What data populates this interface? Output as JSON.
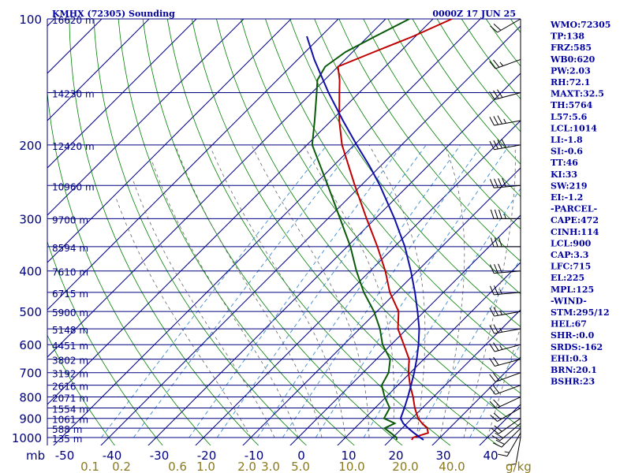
{
  "header": {
    "station": "KMHX (72305) Sounding",
    "time": "0000Z 17 JUN 25"
  },
  "chart_data": {
    "type": "line",
    "title": "KMHX (72305) Sounding",
    "subtitle": "0000Z 17 JUN 25",
    "pressure_unit": "mb",
    "mixing_ratio_unit": "g/kg",
    "pressure_ticks": [
      100,
      200,
      300,
      400,
      500,
      600,
      700,
      800,
      900,
      1000
    ],
    "height_labels": [
      {
        "p": 100,
        "label": "16620 m"
      },
      {
        "p": 150,
        "label": "14230 m"
      },
      {
        "p": 200,
        "label": "12420 m"
      },
      {
        "p": 250,
        "label": "10960 m"
      },
      {
        "p": 300,
        "label": "9700 m"
      },
      {
        "p": 350,
        "label": "8594 m"
      },
      {
        "p": 400,
        "label": "7610 m"
      },
      {
        "p": 450,
        "label": "6715 m"
      },
      {
        "p": 500,
        "label": "5900 m"
      },
      {
        "p": 550,
        "label": "5148 m"
      },
      {
        "p": 600,
        "label": "4451 m"
      },
      {
        "p": 650,
        "label": "3802 m"
      },
      {
        "p": 700,
        "label": "3192 m"
      },
      {
        "p": 750,
        "label": "2616 m"
      },
      {
        "p": 800,
        "label": "2071 m"
      },
      {
        "p": 850,
        "label": "1554 m"
      },
      {
        "p": 900,
        "label": "1061 m"
      },
      {
        "p": 950,
        "label": "588 m"
      },
      {
        "p": 1000,
        "label": "135 m"
      }
    ],
    "temperature_ticks": [
      -50,
      -40,
      -30,
      -20,
      -10,
      0,
      10,
      20,
      30,
      40
    ],
    "mixing_ratio_ticks": [
      "0.1",
      "0.2",
      "0.6",
      "1.0",
      "2.0",
      "3.0",
      "5.0",
      "10.0",
      "20.0",
      "40.0"
    ],
    "series": [
      {
        "role": "temperature",
        "color": "#c00000",
        "points": [
          [
            1013,
            24.5
          ],
          [
            1000,
            24.3
          ],
          [
            975,
            26.5
          ],
          [
            950,
            25.3
          ],
          [
            925,
            23.2
          ],
          [
            900,
            21.3
          ],
          [
            850,
            18.4
          ],
          [
            800,
            15.7
          ],
          [
            750,
            12.6
          ],
          [
            700,
            9.6
          ],
          [
            650,
            6.9
          ],
          [
            600,
            2.7
          ],
          [
            550,
            -1.9
          ],
          [
            500,
            -5.4
          ],
          [
            450,
            -11.3
          ],
          [
            400,
            -16.8
          ],
          [
            350,
            -23.6
          ],
          [
            300,
            -31.8
          ],
          [
            250,
            -41.3
          ],
          [
            200,
            -52.6
          ],
          [
            175,
            -58.3
          ],
          [
            150,
            -64.2
          ],
          [
            140,
            -66.8
          ],
          [
            130,
            -70.0
          ],
          [
            120,
            -65.5
          ],
          [
            110,
            -60.5
          ],
          [
            100,
            -56.0
          ]
        ]
      },
      {
        "role": "dewpoint",
        "color": "#0a5a0a",
        "points": [
          [
            1013,
            21.3
          ],
          [
            1000,
            20.8
          ],
          [
            975,
            18.6
          ],
          [
            950,
            16.3
          ],
          [
            925,
            17.4
          ],
          [
            900,
            14.1
          ],
          [
            850,
            13.1
          ],
          [
            800,
            9.7
          ],
          [
            750,
            6.6
          ],
          [
            700,
            5.4
          ],
          [
            650,
            2.9
          ],
          [
            600,
            -1.8
          ],
          [
            550,
            -5.7
          ],
          [
            500,
            -10.6
          ],
          [
            450,
            -16.8
          ],
          [
            400,
            -22.9
          ],
          [
            350,
            -29.3
          ],
          [
            300,
            -37.4
          ],
          [
            250,
            -47.0
          ],
          [
            200,
            -58.9
          ],
          [
            175,
            -63.5
          ],
          [
            150,
            -69.0
          ],
          [
            140,
            -71.5
          ],
          [
            130,
            -72.7
          ],
          [
            120,
            -71.5
          ],
          [
            110,
            -68.5
          ],
          [
            100,
            -65.0
          ]
        ]
      },
      {
        "role": "parcel",
        "color": "#1010a8",
        "points": [
          [
            1013,
            27.0
          ],
          [
            1000,
            25.8
          ],
          [
            975,
            23.5
          ],
          [
            950,
            21.3
          ],
          [
            925,
            19.2
          ],
          [
            900,
            17.6
          ],
          [
            850,
            16.2
          ],
          [
            800,
            14.6
          ],
          [
            750,
            12.8
          ],
          [
            700,
            10.8
          ],
          [
            650,
            8.5
          ],
          [
            600,
            5.8
          ],
          [
            550,
            2.6
          ],
          [
            500,
            -1.4
          ],
          [
            450,
            -6.0
          ],
          [
            400,
            -11.4
          ],
          [
            350,
            -17.8
          ],
          [
            300,
            -25.9
          ],
          [
            250,
            -36.0
          ],
          [
            225,
            -42.2
          ],
          [
            200,
            -49.5
          ],
          [
            175,
            -57.5
          ],
          [
            150,
            -66.5
          ],
          [
            125,
            -76.5
          ],
          [
            110,
            -83.0
          ]
        ]
      }
    ]
  },
  "indices": [
    "WMO:72305",
    "TP:138",
    "FRZ:585",
    "WB0:620",
    "PW:2.03",
    "RH:72.1",
    "MAXT:32.5",
    "TH:5764",
    "L57:5.6",
    "LCL:1014",
    "LI:-1.8",
    "SI:-0.6",
    "TT:46",
    "KI:33",
    "SW:219",
    "EI:-1.2",
    "-PARCEL-",
    "CAPE:472",
    "CINH:114",
    "LCL:900",
    "CAP:3.3",
    "LFC:715",
    "EL:225",
    "MPL:125",
    "-WIND-",
    "STM:295/12",
    "HEL:67",
    "SHR-:0.0",
    "SRDS:-162",
    "EHI:0.3",
    "BRN:20.1",
    "BSHR:23"
  ],
  "wind_profile": [
    [
      1000,
      190,
      10
    ],
    [
      975,
      210,
      15
    ],
    [
      950,
      225,
      20
    ],
    [
      925,
      230,
      20
    ],
    [
      900,
      235,
      20
    ],
    [
      850,
      240,
      20
    ],
    [
      800,
      245,
      20
    ],
    [
      750,
      250,
      20
    ],
    [
      700,
      250,
      20
    ],
    [
      650,
      255,
      20
    ],
    [
      600,
      255,
      25
    ],
    [
      550,
      260,
      25
    ],
    [
      500,
      260,
      25
    ],
    [
      450,
      265,
      25
    ],
    [
      400,
      265,
      30
    ],
    [
      350,
      270,
      30
    ],
    [
      300,
      270,
      35
    ],
    [
      250,
      265,
      40
    ],
    [
      200,
      260,
      40
    ],
    [
      175,
      260,
      35
    ],
    [
      150,
      255,
      30
    ],
    [
      125,
      250,
      25
    ],
    [
      100,
      240,
      20
    ]
  ],
  "colors": {
    "isobar": "#000080",
    "isotherm": "#000080",
    "dry_adiabat": "#008000",
    "moist_adiabat": "#666666",
    "mixing_line": "#3a8ad0",
    "temperature": "#c00000",
    "dewpoint": "#0a5a0a",
    "parcel": "#1010a8"
  }
}
